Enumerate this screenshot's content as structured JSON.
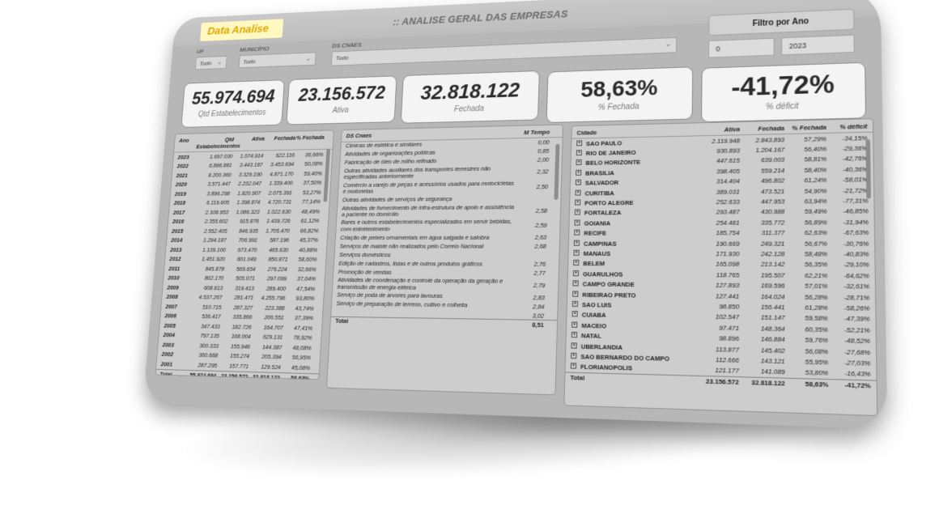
{
  "header": {
    "logo_text": "Data Analise",
    "title": ":: ANALISE GERAL DAS EMPRESAS"
  },
  "filters": {
    "uf": {
      "label": "UF",
      "value": "Tudo"
    },
    "municipio": {
      "label": "MUNICÍPIO",
      "value": "Tudo"
    },
    "ds_cnaes": {
      "label": "DS CNAES",
      "value": "Tudo"
    },
    "ano": {
      "title": "Filtro por Ano",
      "from": "0",
      "to": "2023"
    }
  },
  "kpis": {
    "qtd": {
      "value": "55.974.694",
      "label": "Qtd Estabelecimentos"
    },
    "ativa": {
      "value": "23.156.572",
      "label": "Ativa"
    },
    "fechada": {
      "value": "32.818.122",
      "label": "Fechada"
    },
    "pct_fechada": {
      "value": "58,63%",
      "label": "% Fechada"
    },
    "deficit": {
      "value": "-41,72%",
      "label": "% déficit"
    }
  },
  "table_ano": {
    "headers": [
      "Ano",
      "Qtd Estabelecimentos",
      "Ativa",
      "Fechada",
      "% Fechada"
    ],
    "rows": [
      [
        "2023",
        "1.697.030",
        "1.074.914",
        "622.116",
        "36,66%"
      ],
      [
        "2022",
        "6.896.881",
        "3.443.187",
        "3.453.694",
        "50,08%"
      ],
      [
        "2021",
        "8.200.360",
        "3.329.190",
        "4.871.170",
        "59,40%"
      ],
      [
        "2020",
        "3.571.447",
        "2.232.047",
        "1.339.400",
        "37,50%"
      ],
      [
        "2019",
        "3.896.298",
        "1.820.907",
        "2.075.391",
        "53,27%"
      ],
      [
        "2018",
        "6.119.605",
        "1.398.874",
        "4.720.731",
        "77,14%"
      ],
      [
        "2017",
        "2.108.953",
        "1.086.323",
        "1.022.630",
        "48,49%"
      ],
      [
        "2016",
        "2.355.602",
        "915.876",
        "1.439.726",
        "61,12%"
      ],
      [
        "2015",
        "2.552.405",
        "846.935",
        "1.705.470",
        "66,82%"
      ],
      [
        "2014",
        "1.294.187",
        "706.991",
        "587.196",
        "45,37%"
      ],
      [
        "2013",
        "1.139.100",
        "673.470",
        "465.630",
        "40,88%"
      ],
      [
        "2012",
        "1.451.920",
        "601.049",
        "850.871",
        "58,60%"
      ],
      [
        "2011",
        "845.878",
        "569.654",
        "276.224",
        "32,66%"
      ],
      [
        "2010",
        "802.170",
        "505.071",
        "297.099",
        "37,04%"
      ],
      [
        "2009",
        "608.813",
        "319.413",
        "289.400",
        "47,54%"
      ],
      [
        "2008",
        "4.537.267",
        "281.471",
        "4.255.796",
        "93,80%"
      ],
      [
        "2007",
        "510.715",
        "287.327",
        "223.388",
        "43,74%"
      ],
      [
        "2006",
        "536.417",
        "335.866",
        "200.551",
        "37,39%"
      ],
      [
        "2005",
        "347.433",
        "182.726",
        "164.707",
        "47,41%"
      ],
      [
        "2004",
        "797.135",
        "168.004",
        "629.131",
        "78,92%"
      ],
      [
        "2003",
        "300.333",
        "155.946",
        "144.387",
        "48,08%"
      ],
      [
        "2002",
        "360.668",
        "155.274",
        "205.394",
        "56,95%"
      ],
      [
        "2001",
        "287.295",
        "157.771",
        "129.524",
        "45,08%"
      ]
    ],
    "total": [
      "Total",
      "55.974.694",
      "23.156.572",
      "32.818.122",
      "58,63%"
    ]
  },
  "table_cnaes": {
    "headers": [
      "DS Cnaes",
      "M Tempo"
    ],
    "rows": [
      [
        "Clínicas de estética e similares",
        "0,00"
      ],
      [
        "Atividades de organizações políticas",
        "0,85"
      ],
      [
        "Fabricação de óleo de milho refinado",
        "2,00"
      ],
      [
        "Outras atividades auxiliares dos transportes terrestres não especificadas anteriormente",
        "2,32"
      ],
      [
        "Comércio a varejo de peças e acessórios usados para motocicletas e motonetas",
        "2,50"
      ],
      [
        "Outras atividades de serviços de segurança",
        ""
      ],
      [
        "Atividades de fornecimento de infra-estrutura de apoio e assistência a paciente no domicílio",
        "2,58"
      ],
      [
        "Bares e outros estabelecimentos especializados em servir bebidas, com entretenimento",
        "2,59"
      ],
      [
        "Criação de peixes ornamentais em água salgada e salobra",
        "2,63"
      ],
      [
        "Serviços de malote não realizados pelo Correio Nacional",
        "2,68"
      ],
      [
        "Serviços domésticos",
        ""
      ],
      [
        "Edição de cadastros, listas e de outros produtos gráficos",
        "2,76"
      ],
      [
        "Promoção de vendas",
        "2,77"
      ],
      [
        "Atividades de coordenação e controle da operação da geração e transmissão de energia elétrica",
        "2,79"
      ],
      [
        "Serviço de poda de árvores para lavouras",
        "2,83"
      ],
      [
        "Serviço de preparação de terreno, cultivo e colheita",
        "2,84"
      ]
    ],
    "extra_values": [
      "3,02"
    ],
    "total": [
      "Total",
      "8,51"
    ]
  },
  "table_cidade": {
    "headers": [
      "Cidade",
      "Ativa",
      "Fechada",
      "% Fechada",
      "% déficit"
    ],
    "rows": [
      [
        "SAO PAULO",
        "2.119.948",
        "2.843.893",
        "57,29%",
        "-34,15%"
      ],
      [
        "RIO DE JANEIRO",
        "930.893",
        "1.204.167",
        "56,40%",
        "-29,36%"
      ],
      [
        "BELO HORIZONTE",
        "447.615",
        "639.003",
        "58,81%",
        "-42,76%"
      ],
      [
        "BRASILIA",
        "398.405",
        "559.214",
        "58,40%",
        "-40,36%"
      ],
      [
        "SALVADOR",
        "314.404",
        "496.802",
        "61,24%",
        "-58,01%"
      ],
      [
        "CURITIBA",
        "389.031",
        "473.521",
        "54,90%",
        "-21,72%"
      ],
      [
        "PORTO ALEGRE",
        "252.633",
        "447.953",
        "63,94%",
        "-77,31%"
      ],
      [
        "FORTALEZA",
        "293.487",
        "430.988",
        "59,49%",
        "-46,85%"
      ],
      [
        "GOIANIA",
        "254.481",
        "335.772",
        "56,89%",
        "-31,94%"
      ],
      [
        "RECIFE",
        "185.754",
        "311.377",
        "62,63%",
        "-67,63%"
      ],
      [
        "CAMPINAS",
        "190.669",
        "249.321",
        "56,67%",
        "-30,76%"
      ],
      [
        "MANAUS",
        "171.930",
        "242.128",
        "58,48%",
        "-40,83%"
      ],
      [
        "BELEM",
        "165.098",
        "213.142",
        "56,35%",
        "-29,10%"
      ],
      [
        "GUARULHOS",
        "118.765",
        "195.507",
        "62,21%",
        "-64,62%"
      ],
      [
        "CAMPO GRANDE",
        "127.893",
        "169.596",
        "57,01%",
        "-32,61%"
      ],
      [
        "RIBEIRAO PRETO",
        "127.441",
        "164.024",
        "56,28%",
        "-28,71%"
      ],
      [
        "SAO LUIS",
        "98.850",
        "156.441",
        "61,28%",
        "-58,26%"
      ],
      [
        "CUIABA",
        "102.547",
        "151.147",
        "59,58%",
        "-47,39%"
      ],
      [
        "MACEIO",
        "97.471",
        "148.364",
        "60,35%",
        "-52,21%"
      ],
      [
        "NATAL",
        "98.896",
        "146.884",
        "59,76%",
        "-48,52%"
      ],
      [
        "UBERLANDIA",
        "113.877",
        "145.402",
        "56,08%",
        "-27,68%"
      ],
      [
        "SAO BERNARDO DO CAMPO",
        "112.666",
        "143.121",
        "55,95%",
        "-27,03%"
      ],
      [
        "FLORIANOPOLIS",
        "121.177",
        "141.089",
        "53,80%",
        "-16,43%"
      ]
    ],
    "total": [
      "Total",
      "23.156.572",
      "32.818.122",
      "58,63%",
      "-41,72%"
    ]
  }
}
